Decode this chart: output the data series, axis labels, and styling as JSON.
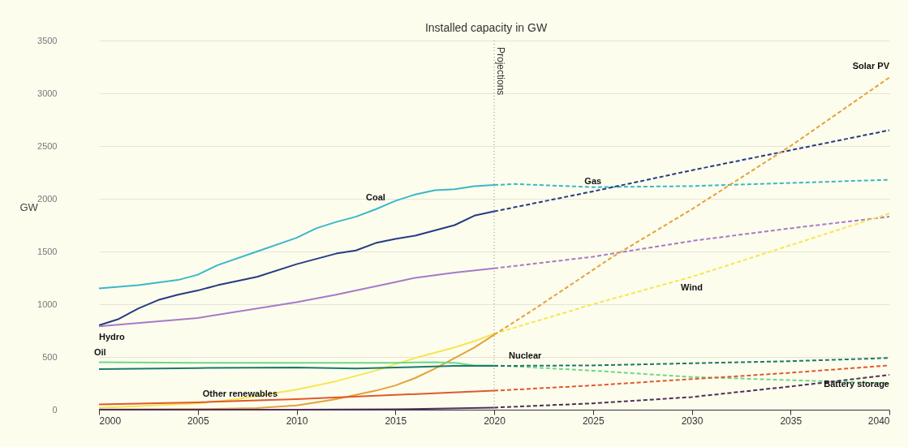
{
  "chart_data": {
    "type": "line",
    "title": "Installed capacity in GW",
    "ylabel": "GW",
    "xlim": [
      2000,
      2040
    ],
    "xticks": [
      2000,
      2005,
      2010,
      2015,
      2020,
      2025,
      2030,
      2035,
      2040
    ],
    "ylim": [
      0,
      3500
    ],
    "yticks": [
      0,
      500,
      1000,
      1500,
      2000,
      2500,
      3000,
      3500
    ],
    "grid": "y",
    "legend": false,
    "ref_lines": [
      {
        "axis": "x",
        "value": 2020,
        "label": "Projections",
        "line_style": "dotted",
        "color": "#888888"
      }
    ],
    "series": [
      {
        "name": "Coal",
        "color": "#3ab7c8",
        "line_style": "solid",
        "x": [
          2000,
          2002,
          2004,
          2005,
          2006,
          2008,
          2010,
          2011,
          2012,
          2013,
          2014,
          2015,
          2016,
          2017,
          2018,
          2019,
          2020
        ],
        "values": [
          1150,
          1180,
          1230,
          1280,
          1370,
          1500,
          1630,
          1720,
          1780,
          1830,
          1900,
          1980,
          2040,
          2080,
          2090,
          2120,
          2130
        ]
      },
      {
        "color": "#3ab7c8",
        "line_style": "dashed",
        "x": [
          2020,
          2021,
          2025,
          2030,
          2035,
          2040
        ],
        "values": [
          2130,
          2140,
          2110,
          2120,
          2150,
          2180
        ]
      },
      {
        "color": "#263c80",
        "line_style": "solid",
        "x": [
          2000,
          2001,
          2002,
          2003,
          2004,
          2005,
          2006,
          2008,
          2010,
          2012,
          2013,
          2014,
          2015,
          2016,
          2017,
          2018,
          2019,
          2020
        ],
        "values": [
          800,
          860,
          960,
          1040,
          1090,
          1130,
          1180,
          1260,
          1380,
          1480,
          1510,
          1580,
          1620,
          1650,
          1700,
          1750,
          1840,
          1880
        ]
      },
      {
        "name": "Gas",
        "color": "#263c80",
        "line_style": "dashed",
        "x": [
          2020,
          2025,
          2030,
          2035,
          2040
        ],
        "values": [
          1880,
          2070,
          2270,
          2460,
          2650
        ]
      },
      {
        "name": "Hydro",
        "color": "#a77ac7",
        "line_style": "solid",
        "x": [
          2000,
          2005,
          2010,
          2012,
          2015,
          2016,
          2018,
          2020
        ],
        "values": [
          790,
          870,
          1020,
          1090,
          1210,
          1250,
          1300,
          1340
        ]
      },
      {
        "color": "#a77ac7",
        "line_style": "dashed",
        "x": [
          2020,
          2025,
          2030,
          2035,
          2040
        ],
        "values": [
          1340,
          1450,
          1600,
          1720,
          1830
        ]
      },
      {
        "color": "#f5e650",
        "line_style": "solid",
        "x": [
          2000,
          2005,
          2007,
          2010,
          2012,
          2013,
          2014,
          2015,
          2016,
          2017,
          2018,
          2019,
          2020
        ],
        "values": [
          17,
          60,
          100,
          190,
          270,
          320,
          370,
          430,
          490,
          540,
          590,
          650,
          720
        ]
      },
      {
        "name": "Wind",
        "color": "#f5e650",
        "line_style": "dashed",
        "x": [
          2020,
          2025,
          2030,
          2035,
          2040
        ],
        "values": [
          720,
          1000,
          1260,
          1560,
          1860
        ]
      },
      {
        "color": "#e3a13a",
        "line_style": "solid",
        "x": [
          2000,
          2005,
          2008,
          2010,
          2011,
          2012,
          2013,
          2014,
          2015,
          2016,
          2017,
          2018,
          2019,
          2020
        ],
        "values": [
          1,
          5,
          15,
          40,
          70,
          100,
          140,
          180,
          230,
          300,
          390,
          490,
          590,
          710
        ]
      },
      {
        "name": "Solar PV",
        "color": "#e3a13a",
        "line_style": "dashed",
        "x": [
          2020,
          2022,
          2024,
          2026,
          2030,
          2035,
          2040
        ],
        "values": [
          710,
          950,
          1200,
          1450,
          1900,
          2500,
          3150
        ]
      },
      {
        "name": "Oil",
        "color": "#6fd68a",
        "line_style": "solid",
        "x": [
          2000,
          2005,
          2010,
          2015,
          2017,
          2018,
          2019,
          2020
        ],
        "values": [
          450,
          445,
          445,
          445,
          450,
          445,
          420,
          420
        ]
      },
      {
        "color": "#6fd68a",
        "line_style": "dashed",
        "x": [
          2020,
          2025,
          2030,
          2035,
          2040
        ],
        "values": [
          420,
          370,
          310,
          280,
          250
        ]
      },
      {
        "color": "#1b7a6a",
        "line_style": "solid",
        "x": [
          2000,
          2005,
          2010,
          2013,
          2015,
          2018,
          2020
        ],
        "values": [
          385,
          395,
          400,
          390,
          400,
          415,
          415
        ]
      },
      {
        "name": "Nuclear",
        "color": "#1b7a6a",
        "line_style": "dashed",
        "x": [
          2020,
          2025,
          2030,
          2035,
          2040
        ],
        "values": [
          415,
          420,
          440,
          460,
          490
        ]
      },
      {
        "name": "Other renewables",
        "color": "#e0592a",
        "line_style": "solid",
        "x": [
          2000,
          2005,
          2010,
          2015,
          2020
        ],
        "values": [
          50,
          70,
          100,
          140,
          180
        ]
      },
      {
        "color": "#e0592a",
        "line_style": "dashed",
        "x": [
          2020,
          2025,
          2030,
          2035,
          2040
        ],
        "values": [
          180,
          230,
          290,
          350,
          420
        ]
      },
      {
        "color": "#4e2f5a",
        "line_style": "solid",
        "x": [
          2000,
          2010,
          2015,
          2020
        ],
        "values": [
          0,
          0,
          3,
          20
        ]
      },
      {
        "name": "Battery storage",
        "color": "#4e2f5a",
        "line_style": "dashed",
        "x": [
          2020,
          2025,
          2030,
          2035,
          2040
        ],
        "values": [
          20,
          60,
          120,
          220,
          330
        ]
      }
    ]
  }
}
